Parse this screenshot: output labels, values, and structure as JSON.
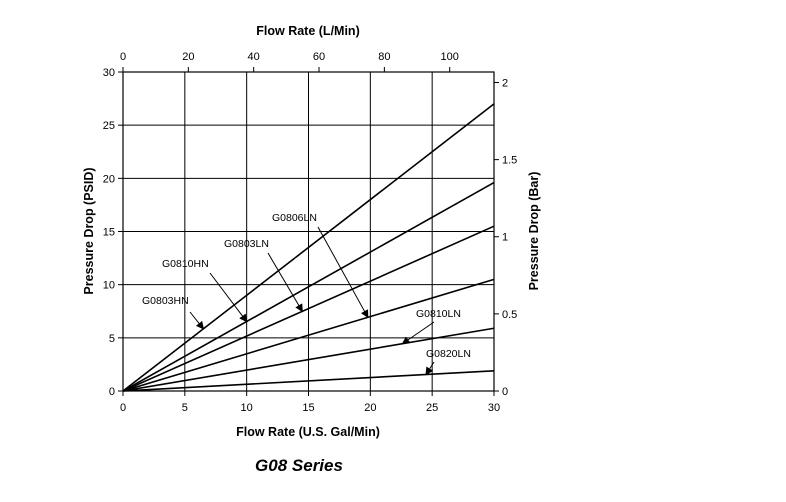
{
  "chart_data": {
    "type": "line",
    "title": "",
    "caption": "G08 Series",
    "xlabel": "Flow Rate (U.S. Gal/Min)",
    "ylabel": "Pressure Drop (PSID)",
    "x2label": "Flow Rate (L/Min)",
    "y2label": "Pressure Drop (Bar)",
    "xlim": [
      0,
      30
    ],
    "ylim": [
      0,
      30
    ],
    "x2lim": [
      0,
      113.56
    ],
    "y2lim": [
      0,
      2.068
    ],
    "x_ticks": [
      "0",
      "5",
      "10",
      "15",
      "20",
      "25",
      "30"
    ],
    "y_ticks": [
      "0",
      "5",
      "10",
      "15",
      "20",
      "25",
      "30"
    ],
    "x2_ticks": [
      "0",
      "20",
      "40",
      "60",
      "80",
      "100"
    ],
    "y2_ticks": [
      "0",
      "0.5",
      "1",
      "1.5",
      "2"
    ],
    "grid": true,
    "series": [
      {
        "name": "G0803HN",
        "x": [
          0,
          30
        ],
        "y": [
          0,
          27.0
        ]
      },
      {
        "name": "G0810HN",
        "x": [
          0,
          30
        ],
        "y": [
          0,
          19.6
        ]
      },
      {
        "name": "G0803LN",
        "x": [
          0,
          30
        ],
        "y": [
          0,
          15.5
        ]
      },
      {
        "name": "G0806LN",
        "x": [
          0,
          30
        ],
        "y": [
          0,
          10.5
        ]
      },
      {
        "name": "G0810LN",
        "x": [
          0,
          30
        ],
        "y": [
          0,
          5.9
        ]
      },
      {
        "name": "G0820LN",
        "x": [
          0,
          30
        ],
        "y": [
          0,
          1.9
        ]
      }
    ]
  }
}
